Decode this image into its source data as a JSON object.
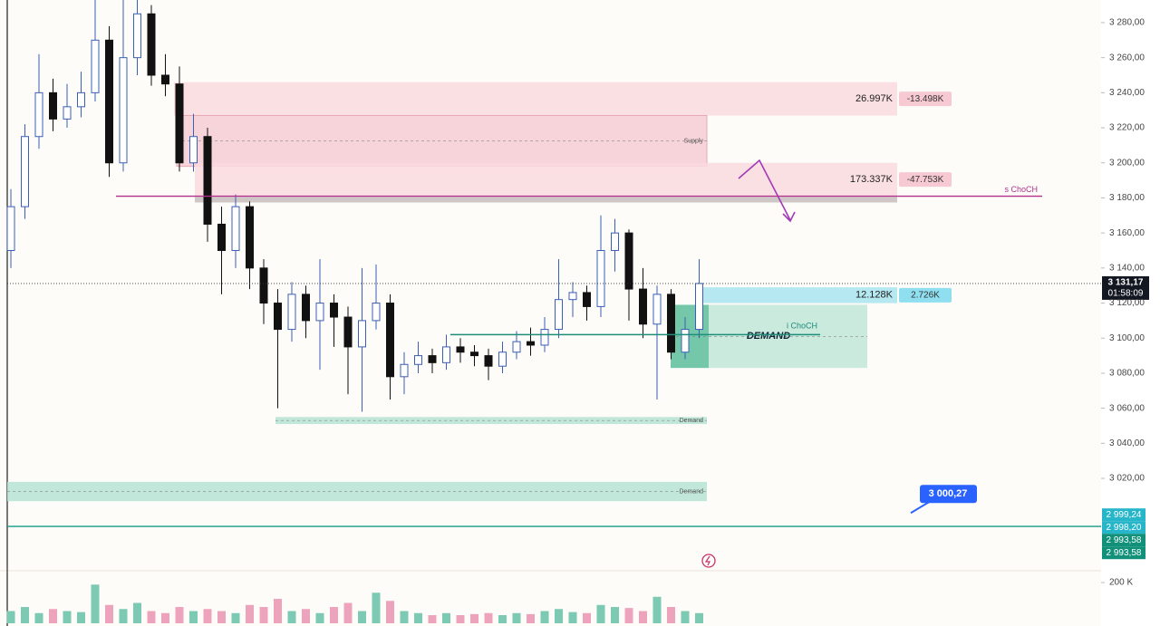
{
  "chart_data": {
    "type": "candlestick",
    "ylim": [
      2967.3,
      3292.9
    ],
    "yticks": [
      {
        "value": 3280,
        "label": "3 280,00"
      },
      {
        "value": 3260,
        "label": "3 260,00"
      },
      {
        "value": 3240,
        "label": "3 240,00"
      },
      {
        "value": 3220,
        "label": "3 220,00"
      },
      {
        "value": 3200,
        "label": "3 200,00"
      },
      {
        "value": 3180,
        "label": "3 180,00"
      },
      {
        "value": 3160,
        "label": "3 160,00"
      },
      {
        "value": 3140,
        "label": "3 140,00"
      },
      {
        "value": 3120,
        "label": "3 120,00"
      },
      {
        "value": 3100,
        "label": "3 100,00"
      },
      {
        "value": 3080,
        "label": "3 080,00"
      },
      {
        "value": 3060,
        "label": "3 060,00"
      },
      {
        "value": 3040,
        "label": "3 040,00"
      },
      {
        "value": 3020,
        "label": "3 020,00"
      }
    ],
    "up_color": "#3b5fb4",
    "down_color": "#111111",
    "open": [
      3150,
      3175,
      3215,
      3240,
      3225,
      3232,
      3240,
      3270,
      3200,
      3260,
      3285,
      3250,
      3245,
      3200,
      3215,
      3165,
      3150,
      3175,
      3140,
      3120,
      3105,
      3125,
      3110,
      3120,
      3112,
      3095,
      3110,
      3120,
      3078,
      3085,
      3090,
      3086,
      3095,
      3092,
      3090,
      3084,
      3092,
      3098,
      3096,
      3105,
      3122,
      3126,
      3118,
      3150,
      3160,
      3128,
      3108,
      3125,
      3092,
      3105
    ],
    "high": [
      3185,
      3222,
      3262,
      3248,
      3245,
      3252,
      3295,
      3278,
      3295,
      3300,
      3290,
      3262,
      3255,
      3228,
      3220,
      3175,
      3182,
      3178,
      3145,
      3128,
      3132,
      3130,
      3145,
      3125,
      3118,
      3140,
      3142,
      3125,
      3092,
      3098,
      3094,
      3102,
      3100,
      3096,
      3094,
      3098,
      3104,
      3106,
      3112,
      3145,
      3132,
      3130,
      3170,
      3168,
      3162,
      3140,
      3130,
      3128,
      3112,
      3145
    ],
    "low": [
      3140,
      3168,
      3208,
      3218,
      3220,
      3226,
      3235,
      3192,
      3195,
      3250,
      3244,
      3238,
      3195,
      3195,
      3155,
      3125,
      3140,
      3128,
      3108,
      3060,
      3098,
      3100,
      3082,
      3095,
      3068,
      3058,
      3105,
      3065,
      3068,
      3080,
      3080,
      3082,
      3086,
      3084,
      3076,
      3080,
      3088,
      3090,
      3092,
      3100,
      3112,
      3110,
      3112,
      3138,
      3110,
      3100,
      3065,
      3088,
      3088,
      3100
    ],
    "close": [
      3175,
      3215,
      3240,
      3225,
      3232,
      3240,
      3270,
      3200,
      3260,
      3285,
      3250,
      3245,
      3200,
      3215,
      3165,
      3150,
      3175,
      3140,
      3120,
      3105,
      3125,
      3110,
      3120,
      3112,
      3095,
      3110,
      3120,
      3078,
      3085,
      3090,
      3086,
      3095,
      3092,
      3090,
      3084,
      3092,
      3098,
      3096,
      3105,
      3122,
      3126,
      3118,
      3150,
      3160,
      3128,
      3108,
      3125,
      3092,
      3105,
      3131.17
    ],
    "volume": [
      60,
      80,
      50,
      70,
      60,
      55,
      190,
      90,
      70,
      100,
      60,
      50,
      80,
      60,
      70,
      60,
      50,
      90,
      80,
      120,
      60,
      70,
      50,
      80,
      100,
      60,
      150,
      110,
      60,
      50,
      40,
      50,
      40,
      45,
      50,
      40,
      50,
      45,
      60,
      70,
      55,
      50,
      90,
      80,
      75,
      60,
      130,
      80,
      60,
      50
    ],
    "vlim": [
      0,
      258
    ],
    "vticks": [
      {
        "value": 200,
        "label": "200 K"
      }
    ],
    "zones": [
      {
        "top": 3246,
        "bottom": 3227,
        "color": "#f9d9df",
        "volume": "26.997K",
        "delta": "-13.498K"
      },
      {
        "top": 3227,
        "bottom": 3198,
        "color": "#f6cdd5",
        "label": "Supply"
      },
      {
        "top": 3200,
        "bottom": 3181,
        "color": "#f9d9df",
        "volume": "173.337K",
        "delta": "-47.753K"
      },
      {
        "top": 3129,
        "bottom": 3120,
        "color": "#a8e4f0",
        "volume": "12.128K",
        "delta": "2.726K"
      },
      {
        "top": 3119,
        "bottom": 3083,
        "color": "#bfe6d8",
        "label": "DEMAND"
      },
      {
        "top": 3055,
        "bottom": 3051,
        "color": "#b5e3d3",
        "label": "Demand"
      },
      {
        "top": 3018,
        "bottom": 3007,
        "color": "#b5e3d3",
        "label": "Demand"
      }
    ],
    "levels": [
      {
        "value": 3181,
        "label": "s ChoCH",
        "color": "#b0308c"
      },
      {
        "value": 3102,
        "label": "i ChoCH",
        "color": "#1e8c7a"
      },
      {
        "value": 2992.6,
        "color": "#159a82"
      }
    ],
    "last": {
      "value": 3131.17,
      "label": "3 131,17",
      "timer": "01:58:09"
    },
    "callout": {
      "value": 3000.27,
      "label": "3 000,27"
    },
    "price_tags": [
      {
        "value": 2999.24,
        "label": "2 999,24",
        "color": "#26b5c9"
      },
      {
        "value": 2998.2,
        "label": "2 998,20",
        "color": "#26b5c9"
      },
      {
        "value": 2993.58,
        "label": "2 993,58",
        "color": "#11907a"
      },
      {
        "value": 2993.58,
        "label": "2 993,58",
        "color": "#11907a"
      }
    ]
  }
}
